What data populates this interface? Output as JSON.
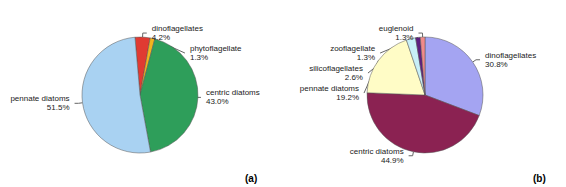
{
  "chart_data": [
    {
      "type": "pie",
      "title": "(a)",
      "categories": [
        "dinoflagellates",
        "phytoflagellate",
        "centric diatoms",
        "pennate diatoms"
      ],
      "values": [
        4.2,
        1.3,
        43.0,
        51.5
      ],
      "value_labels": [
        "4.2%",
        "1.3%",
        "43.0%",
        "51.5%"
      ],
      "colors": [
        "#e03a32",
        "#f2b41e",
        "#2e9e5a",
        "#a9d2f2"
      ],
      "data_labels": true
    },
    {
      "type": "pie",
      "title": "(b)",
      "categories": [
        "dinoflagellates",
        "centric diatoms",
        "pennate diatoms",
        "silicoflagellates",
        "zooflagellate",
        "euglenoid"
      ],
      "values": [
        30.8,
        44.9,
        19.2,
        2.6,
        1.3,
        1.3
      ],
      "value_labels": [
        "30.8%",
        "44.9%",
        "19.2%",
        "2.6%",
        "1.3%",
        "1.3%"
      ],
      "colors": [
        "#a4a4f2",
        "#8b2252",
        "#fffcc6",
        "#c8eff8",
        "#5e1f80",
        "#f08a8a"
      ],
      "data_labels": true
    }
  ]
}
